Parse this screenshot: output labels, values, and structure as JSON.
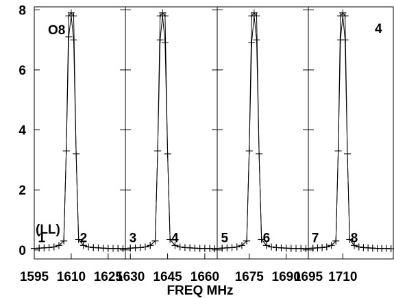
{
  "chart_data": {
    "type": "line",
    "title": "",
    "plot_label": "O8",
    "corner_label": "4",
    "polarization_label": "(LL)",
    "xlabel": "FREQ MHz",
    "ylabel": "",
    "ylim": [
      -0.3,
      8.1
    ],
    "yticks": [
      0,
      2,
      4,
      6,
      8
    ],
    "grid": false,
    "line_color": "#000000",
    "panels": [
      {
        "xlim": [
          1595,
          1632
        ],
        "tick_labels": [
          "1595",
          "1610",
          "1625"
        ],
        "tick_values": [
          1595,
          1610,
          1625
        ],
        "labels": [
          {
            "text": "1",
            "x": 1598,
            "y": 0.3
          },
          {
            "text": "2",
            "x": 1615,
            "y": 0.3
          }
        ],
        "series": [
          {
            "x": [
              1595,
              1597,
              1599,
              1601,
              1603,
              1605,
              1607,
              1608,
              1609,
              1610,
              1611,
              1612,
              1613,
              1615,
              1617,
              1619,
              1621,
              1623,
              1625,
              1627,
              1629,
              1631
            ],
            "y": [
              0.05,
              0.06,
              0.07,
              0.08,
              0.1,
              0.15,
              0.3,
              3.3,
              7.1,
              7.8,
              7.0,
              3.2,
              0.35,
              0.15,
              0.1,
              0.08,
              0.07,
              0.06,
              0.05,
              0.05,
              0.05,
              0.04
            ]
          },
          {
            "x": [
              1595,
              1597,
              1599,
              1601,
              1603,
              1605,
              1607,
              1608,
              1609,
              1610,
              1611,
              1612,
              1613,
              1615,
              1617,
              1619,
              1621,
              1623,
              1625,
              1627,
              1629,
              1631
            ],
            "y": [
              0.05,
              0.06,
              0.07,
              0.08,
              0.1,
              0.15,
              0.3,
              3.3,
              7.8,
              7.9,
              7.8,
              3.2,
              0.35,
              0.15,
              0.1,
              0.08,
              0.07,
              0.06,
              0.05,
              0.05,
              0.05,
              0.04
            ]
          }
        ]
      },
      {
        "xlim": [
          1628,
          1665
        ],
        "tick_labels": [
          "1630",
          "1645",
          "1660"
        ],
        "tick_values": [
          1630,
          1645,
          1660
        ],
        "labels": [
          {
            "text": "3",
            "x": 1631,
            "y": 0.3
          },
          {
            "text": "4",
            "x": 1648,
            "y": 0.3
          }
        ],
        "series": [
          {
            "x": [
              1628,
              1630,
              1632,
              1634,
              1636,
              1638,
              1640,
              1641,
              1642,
              1643,
              1644,
              1645,
              1646,
              1648,
              1650,
              1652,
              1654,
              1656,
              1658,
              1660,
              1662,
              1664
            ],
            "y": [
              0.05,
              0.06,
              0.07,
              0.08,
              0.1,
              0.15,
              0.3,
              3.3,
              7.0,
              7.8,
              6.9,
              3.2,
              0.35,
              0.15,
              0.1,
              0.08,
              0.07,
              0.06,
              0.05,
              0.05,
              0.05,
              0.04
            ]
          },
          {
            "x": [
              1628,
              1630,
              1632,
              1634,
              1636,
              1638,
              1640,
              1641,
              1642,
              1643,
              1644,
              1645,
              1646,
              1648,
              1650,
              1652,
              1654,
              1656,
              1658,
              1660,
              1662,
              1664
            ],
            "y": [
              0.05,
              0.06,
              0.07,
              0.08,
              0.1,
              0.15,
              0.3,
              3.3,
              7.8,
              7.9,
              7.8,
              3.2,
              0.35,
              0.15,
              0.1,
              0.08,
              0.07,
              0.06,
              0.05,
              0.05,
              0.05,
              0.04
            ]
          }
        ]
      },
      {
        "xlim": [
          1662,
          1699
        ],
        "tick_labels": [
          "1675",
          "1690"
        ],
        "tick_values": [
          1675,
          1690
        ],
        "labels": [
          {
            "text": "5",
            "x": 1665,
            "y": 0.3
          },
          {
            "text": "6",
            "x": 1682,
            "y": 0.3
          }
        ],
        "series": [
          {
            "x": [
              1662,
              1664,
              1666,
              1668,
              1670,
              1672,
              1674,
              1675,
              1676,
              1677,
              1678,
              1679,
              1680,
              1682,
              1684,
              1686,
              1688,
              1690,
              1692,
              1694,
              1696,
              1698
            ],
            "y": [
              0.05,
              0.06,
              0.07,
              0.08,
              0.1,
              0.15,
              0.3,
              3.3,
              6.9,
              7.8,
              7.0,
              3.2,
              0.35,
              0.15,
              0.1,
              0.08,
              0.07,
              0.06,
              0.05,
              0.05,
              0.05,
              0.04
            ]
          },
          {
            "x": [
              1662,
              1664,
              1666,
              1668,
              1670,
              1672,
              1674,
              1675,
              1676,
              1677,
              1678,
              1679,
              1680,
              1682,
              1684,
              1686,
              1688,
              1690,
              1692,
              1694,
              1696,
              1698
            ],
            "y": [
              0.05,
              0.06,
              0.07,
              0.08,
              0.1,
              0.15,
              0.3,
              3.3,
              7.8,
              7.9,
              7.8,
              3.2,
              0.35,
              0.15,
              0.1,
              0.08,
              0.07,
              0.06,
              0.05,
              0.05,
              0.05,
              0.04
            ]
          }
        ]
      },
      {
        "xlim": [
          1695,
          1732
        ],
        "tick_labels": [
          "1695",
          "1710"
        ],
        "tick_values": [
          1695,
          1710
        ],
        "labels": [
          {
            "text": "7",
            "x": 1698,
            "y": 0.3
          },
          {
            "text": "8",
            "x": 1715,
            "y": 0.3
          }
        ],
        "series": [
          {
            "x": [
              1695,
              1697,
              1699,
              1701,
              1703,
              1705,
              1707,
              1708,
              1709,
              1710,
              1711,
              1712,
              1713,
              1715,
              1717,
              1719,
              1721,
              1723,
              1725,
              1727,
              1729,
              1731
            ],
            "y": [
              0.05,
              0.06,
              0.07,
              0.08,
              0.1,
              0.15,
              0.3,
              3.3,
              7.0,
              7.8,
              7.0,
              3.2,
              0.35,
              0.15,
              0.1,
              0.08,
              0.07,
              0.06,
              0.05,
              0.05,
              0.05,
              0.04
            ]
          },
          {
            "x": [
              1695,
              1697,
              1699,
              1701,
              1703,
              1705,
              1707,
              1708,
              1709,
              1710,
              1711,
              1712,
              1713,
              1715,
              1717,
              1719,
              1721,
              1723,
              1725,
              1727,
              1729,
              1731
            ],
            "y": [
              0.05,
              0.06,
              0.07,
              0.08,
              0.1,
              0.15,
              0.3,
              3.3,
              7.8,
              7.9,
              7.8,
              3.2,
              0.35,
              0.15,
              0.1,
              0.08,
              0.07,
              0.06,
              0.05,
              0.05,
              0.05,
              0.04
            ]
          }
        ]
      }
    ]
  }
}
